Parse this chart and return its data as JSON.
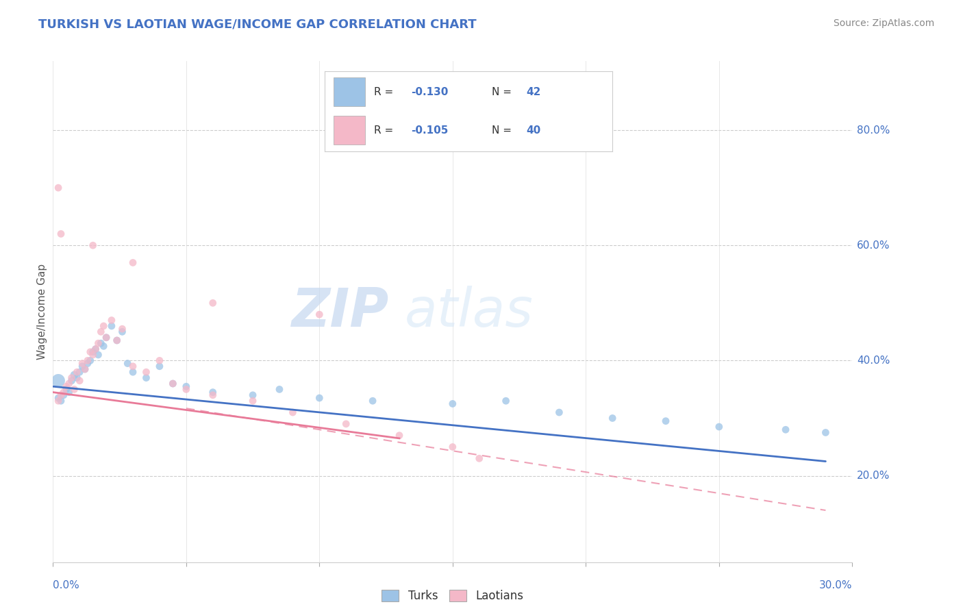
{
  "title": "TURKISH VS LAOTIAN WAGE/INCOME GAP CORRELATION CHART",
  "source": "Source: ZipAtlas.com",
  "ylabel": "Wage/Income Gap",
  "yticks": [
    0.2,
    0.4,
    0.6,
    0.8
  ],
  "ytick_labels": [
    "20.0%",
    "40.0%",
    "60.0%",
    "80.0%"
  ],
  "xlim": [
    0.0,
    0.3
  ],
  "ylim": [
    0.05,
    0.92
  ],
  "title_color": "#4472c4",
  "axis_color": "#4472c4",
  "watermark_zip": "ZIP",
  "watermark_atlas": "atlas",
  "turks_color": "#9dc3e6",
  "laotians_color": "#f4b8c8",
  "turks_line_color": "#4472c4",
  "laotians_line_color": "#e87a98",
  "turks_x": [
    0.002,
    0.003,
    0.004,
    0.005,
    0.006,
    0.007,
    0.008,
    0.009,
    0.01,
    0.011,
    0.012,
    0.013,
    0.014,
    0.015,
    0.016,
    0.017,
    0.018,
    0.019,
    0.02,
    0.022,
    0.024,
    0.026,
    0.028,
    0.03,
    0.035,
    0.04,
    0.045,
    0.05,
    0.06,
    0.075,
    0.085,
    0.1,
    0.12,
    0.15,
    0.17,
    0.19,
    0.21,
    0.23,
    0.25,
    0.275,
    0.29,
    0.002
  ],
  "turks_y": [
    0.335,
    0.33,
    0.34,
    0.35,
    0.345,
    0.365,
    0.375,
    0.37,
    0.38,
    0.39,
    0.385,
    0.395,
    0.4,
    0.415,
    0.42,
    0.41,
    0.43,
    0.425,
    0.44,
    0.46,
    0.435,
    0.45,
    0.395,
    0.38,
    0.37,
    0.39,
    0.36,
    0.355,
    0.345,
    0.34,
    0.35,
    0.335,
    0.33,
    0.325,
    0.33,
    0.31,
    0.3,
    0.295,
    0.285,
    0.28,
    0.275,
    0.365
  ],
  "turks_sizes": [
    60,
    60,
    60,
    60,
    60,
    60,
    70,
    60,
    60,
    60,
    60,
    60,
    60,
    60,
    60,
    60,
    60,
    60,
    60,
    60,
    60,
    60,
    60,
    60,
    60,
    60,
    60,
    60,
    60,
    60,
    60,
    60,
    60,
    60,
    60,
    60,
    60,
    60,
    60,
    60,
    60,
    200
  ],
  "laotians_x": [
    0.002,
    0.003,
    0.004,
    0.005,
    0.006,
    0.007,
    0.008,
    0.009,
    0.01,
    0.011,
    0.012,
    0.013,
    0.014,
    0.015,
    0.016,
    0.017,
    0.018,
    0.019,
    0.02,
    0.022,
    0.024,
    0.026,
    0.03,
    0.035,
    0.04,
    0.045,
    0.05,
    0.06,
    0.075,
    0.09,
    0.11,
    0.13,
    0.15,
    0.16,
    0.06,
    0.1,
    0.002,
    0.003,
    0.015,
    0.03
  ],
  "laotians_y": [
    0.33,
    0.34,
    0.345,
    0.355,
    0.36,
    0.37,
    0.35,
    0.38,
    0.365,
    0.395,
    0.385,
    0.4,
    0.415,
    0.41,
    0.42,
    0.43,
    0.45,
    0.46,
    0.44,
    0.47,
    0.435,
    0.455,
    0.39,
    0.38,
    0.4,
    0.36,
    0.35,
    0.34,
    0.33,
    0.31,
    0.29,
    0.27,
    0.25,
    0.23,
    0.5,
    0.48,
    0.7,
    0.62,
    0.6,
    0.57
  ],
  "laotians_sizes": [
    60,
    60,
    60,
    60,
    60,
    60,
    60,
    60,
    60,
    60,
    60,
    60,
    60,
    60,
    60,
    60,
    60,
    60,
    60,
    60,
    60,
    60,
    60,
    60,
    60,
    60,
    60,
    60,
    60,
    60,
    60,
    60,
    60,
    60,
    60,
    60,
    60,
    60,
    60,
    60
  ]
}
